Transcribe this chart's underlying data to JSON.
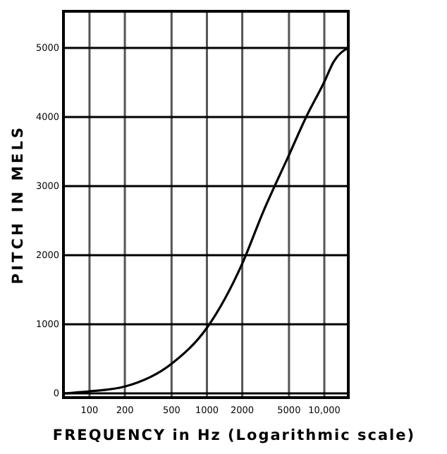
{
  "chart_data": {
    "type": "line",
    "xlabel": "FREQUENCY in Hz (Logarithmic scale)",
    "ylabel": "PITCH IN MELS",
    "log": "x",
    "x": [
      60,
      100,
      200,
      500,
      1000,
      2000,
      3000,
      5000,
      7000,
      10000,
      12000,
      16000
    ],
    "series": [
      {
        "color": "#000000",
        "values": [
          0,
          30,
          100,
          430,
          950,
          1880,
          2620,
          3450,
          4000,
          4510,
          4800,
          5000
        ]
      }
    ],
    "xlim": [
      60,
      16000
    ],
    "ylim": [
      -60,
      5530
    ],
    "xticks": [
      100,
      200,
      500,
      1000,
      2000,
      5000,
      {
        "value": 10000,
        "label": "10,000"
      }
    ],
    "yticks": [
      0,
      1000,
      2000,
      3000,
      4000,
      5000
    ],
    "grid": true,
    "marker": "none",
    "line_style": "solid"
  }
}
